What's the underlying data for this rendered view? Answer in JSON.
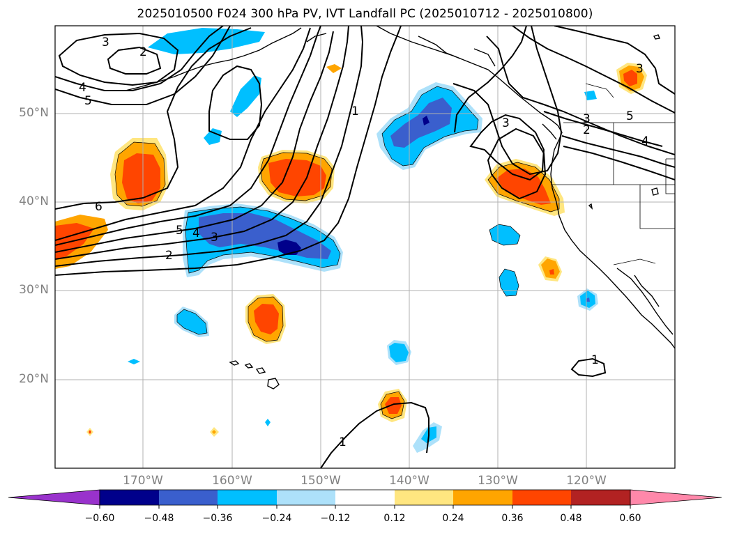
{
  "title": "2025010500 F024 300 hPa PV, IVT Landfall PC (2025010712 - 2025010800)",
  "lat_labels": [
    "50°N",
    "40°N",
    "30°N",
    "20°N"
  ],
  "lon_labels": [
    "170°W",
    "160°W",
    "150°W",
    "140°W",
    "130°W",
    "120°W"
  ],
  "colorbar": {
    "ticks": [
      "−0.60",
      "−0.48",
      "−0.36",
      "−0.24",
      "−0.12",
      "0.12",
      "0.24",
      "0.36",
      "0.48",
      "0.60"
    ],
    "colors": [
      "#9932CC",
      "#00008B",
      "#3A5FCD",
      "#00BFFF",
      "#ADE1FA",
      "#FFFFFF",
      "#FFE680",
      "#FFA500",
      "#FF4500",
      "#B22222",
      "#FF88AA"
    ],
    "extend": "both"
  },
  "contour_labels": [
    "3",
    "2",
    "4",
    "5",
    "6",
    "5",
    "4",
    "3",
    "2",
    "1",
    "3",
    "3",
    "2",
    "5",
    "4",
    "3",
    "1",
    "1"
  ],
  "colors": {
    "contour": "#000000",
    "grid": "#b0b0b0",
    "coast": "#000000"
  }
}
